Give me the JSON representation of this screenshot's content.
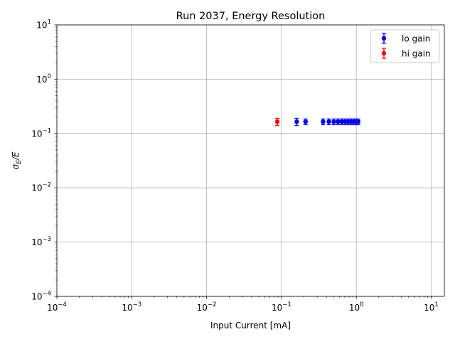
{
  "chart_data": {
    "type": "scatter",
    "title": "Run 2037, Energy Resolution",
    "xlabel": "Input Current [mA]",
    "ylabel": "σE/E",
    "ylabel_main": "σ",
    "ylabel_sub": "E",
    "ylabel_tail": "/E",
    "xscale": "log",
    "yscale": "log",
    "xlim": [
      0.0001,
      15
    ],
    "ylim": [
      0.0001,
      10
    ],
    "xticks": [
      {
        "value": 0.0001,
        "base": "10",
        "exp": "−4"
      },
      {
        "value": 0.001,
        "base": "10",
        "exp": "−3"
      },
      {
        "value": 0.01,
        "base": "10",
        "exp": "−2"
      },
      {
        "value": 0.1,
        "base": "10",
        "exp": "−1"
      },
      {
        "value": 1,
        "base": "10",
        "exp": "0"
      },
      {
        "value": 10,
        "base": "10",
        "exp": "1"
      }
    ],
    "yticks": [
      {
        "value": 0.0001,
        "base": "10",
        "exp": "−4"
      },
      {
        "value": 0.001,
        "base": "10",
        "exp": "−3"
      },
      {
        "value": 0.01,
        "base": "10",
        "exp": "−2"
      },
      {
        "value": 0.1,
        "base": "10",
        "exp": "−1"
      },
      {
        "value": 1,
        "base": "10",
        "exp": "0"
      },
      {
        "value": 10,
        "base": "10",
        "exp": "1"
      }
    ],
    "grid": true,
    "legend_position": "top-right",
    "series": [
      {
        "name": "lo gain",
        "color": "#0000ff",
        "marker": "circle",
        "points": [
          {
            "x": 0.16,
            "y": 0.165,
            "err": 0.025
          },
          {
            "x": 0.21,
            "y": 0.165,
            "err": 0.02
          },
          {
            "x": 0.36,
            "y": 0.165,
            "err": 0.02
          },
          {
            "x": 0.43,
            "y": 0.165,
            "err": 0.02
          },
          {
            "x": 0.5,
            "y": 0.165,
            "err": 0.02
          },
          {
            "x": 0.57,
            "y": 0.165,
            "err": 0.02
          },
          {
            "x": 0.64,
            "y": 0.165,
            "err": 0.02
          },
          {
            "x": 0.71,
            "y": 0.165,
            "err": 0.02
          },
          {
            "x": 0.78,
            "y": 0.165,
            "err": 0.02
          },
          {
            "x": 0.85,
            "y": 0.165,
            "err": 0.02
          },
          {
            "x": 0.92,
            "y": 0.165,
            "err": 0.02
          },
          {
            "x": 0.99,
            "y": 0.165,
            "err": 0.02
          },
          {
            "x": 1.06,
            "y": 0.165,
            "err": 0.02
          }
        ]
      },
      {
        "name": "hi gain",
        "color": "#ff0000",
        "marker": "circle",
        "points": [
          {
            "x": 0.088,
            "y": 0.165,
            "err": 0.025
          }
        ]
      }
    ]
  }
}
